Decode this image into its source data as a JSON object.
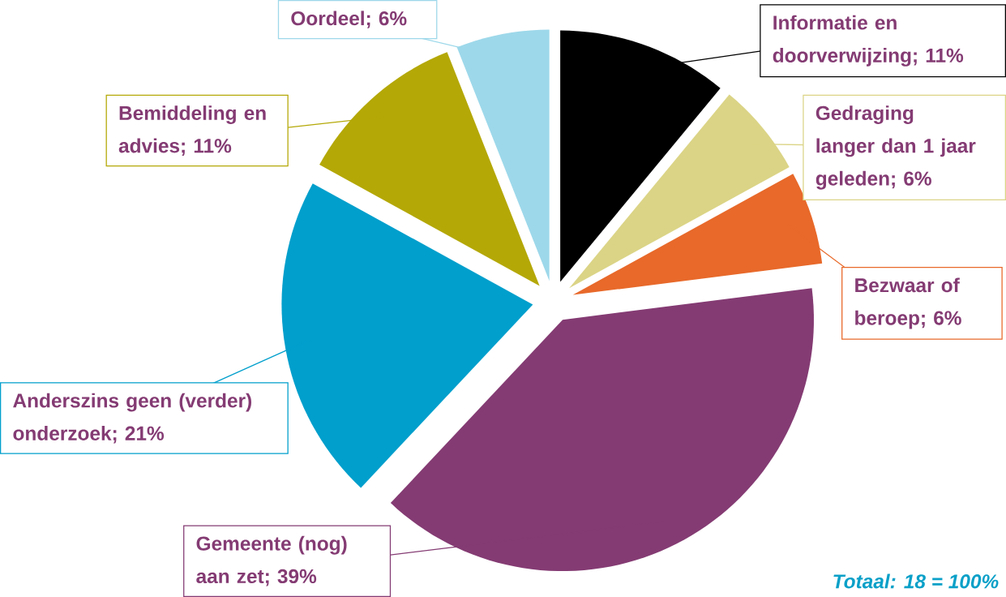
{
  "chart_data": {
    "type": "pie",
    "categories": [
      "Informatie en doorverwijzing; 11%",
      "Gedraging langer dan 1 jaar geleden; 6%",
      "Bezwaar of beroep; 6%",
      "Gemeente (nog) aan zet; 39%",
      "Anderszins geen (verder) onderzoek; 21%",
      "Bemiddeling en advies; 11%",
      "Oordeel; 6%"
    ],
    "values": [
      11,
      6,
      6,
      39,
      21,
      11,
      6
    ],
    "colors": [
      "#000000",
      "#dbd486",
      "#e8692a",
      "#843b73",
      "#009fcc",
      "#b4a807",
      "#9dd8ea"
    ],
    "annotations": [
      "Totaal: 18 = 100%"
    ]
  }
}
